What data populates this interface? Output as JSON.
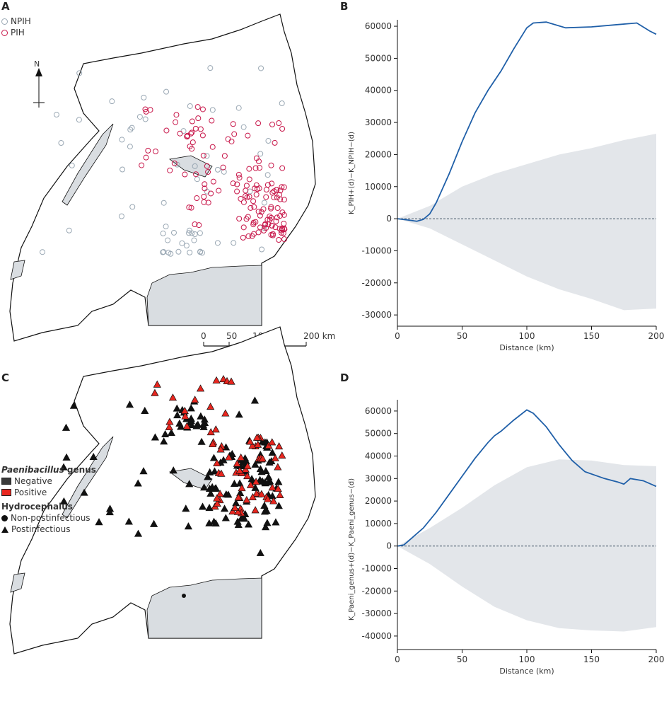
{
  "panels": {
    "a": "A",
    "b": "B",
    "c": "C",
    "d": "D"
  },
  "map_a": {
    "legend": [
      {
        "label": "NPIH",
        "color": "#9aa8b4"
      },
      {
        "label": "PIH",
        "color": "#c8174a"
      }
    ],
    "north": "N",
    "scale_ticks": [
      "0",
      "50",
      "100",
      "200 km"
    ]
  },
  "map_c": {
    "legend_title_italic": "Paenibacillus",
    "legend_title_rest": " genus",
    "genus_items": [
      {
        "label": "Negative",
        "color": "#3a3a3a"
      },
      {
        "label": "Positive",
        "color": "#e8261f"
      }
    ],
    "hydro_title": "Hydrocephalus",
    "hydro_items": [
      {
        "label": "Non-postinfectious",
        "shape": "circle"
      },
      {
        "label": "Postinfectious",
        "shape": "triangle"
      }
    ]
  },
  "colors": {
    "line": "#1f5fa8",
    "envelope": "#e3e6ea",
    "lake": "#d9dde1"
  },
  "chart_data": [
    {
      "type": "line",
      "panel": "B",
      "ylabel": "K_PIH+(d)−K_NPIH−(d)",
      "xlabel": "Distance (km)",
      "xlim": [
        0,
        200
      ],
      "ylim": [
        -33500,
        62000
      ],
      "xticks": [
        0,
        50,
        100,
        150,
        200
      ],
      "yticks": [
        -30000,
        -20000,
        -10000,
        0,
        10000,
        20000,
        30000,
        40000,
        50000,
        60000
      ],
      "series": [
        {
          "name": "observed",
          "x": [
            0,
            10,
            15,
            20,
            25,
            30,
            40,
            50,
            60,
            70,
            80,
            90,
            100,
            105,
            115,
            130,
            150,
            170,
            185,
            195,
            200
          ],
          "y": [
            0,
            -500,
            -800,
            -200,
            1500,
            5000,
            14000,
            24000,
            33000,
            40000,
            46000,
            53000,
            59500,
            61000,
            61300,
            59500,
            59800,
            60500,
            61000,
            58500,
            57500
          ]
        }
      ],
      "envelope": {
        "x": [
          0,
          25,
          50,
          75,
          100,
          125,
          150,
          175,
          200
        ],
        "upper": [
          0,
          4000,
          10000,
          14000,
          17000,
          20000,
          22000,
          24500,
          26500
        ],
        "lower": [
          0,
          -3000,
          -8000,
          -13000,
          -18000,
          -22000,
          -25000,
          -28500,
          -28000
        ]
      },
      "reference_line": 0
    },
    {
      "type": "line",
      "panel": "D",
      "ylabel": "K_Paeni_genus+(d)−K_Paeni_genus−(d)",
      "xlabel": "Distance (km)",
      "xlim": [
        0,
        200
      ],
      "ylim": [
        -46000,
        65000
      ],
      "xticks": [
        0,
        50,
        100,
        150,
        200
      ],
      "yticks": [
        -40000,
        -30000,
        -20000,
        -10000,
        0,
        10000,
        20000,
        30000,
        40000,
        50000,
        60000
      ],
      "series": [
        {
          "name": "observed",
          "x": [
            0,
            5,
            10,
            20,
            30,
            40,
            50,
            60,
            70,
            75,
            80,
            90,
            100,
            105,
            115,
            125,
            135,
            145,
            160,
            170,
            175,
            180,
            190,
            200
          ],
          "y": [
            0,
            500,
            3000,
            8000,
            15000,
            23000,
            31000,
            39000,
            46000,
            49000,
            51000,
            56000,
            60500,
            59000,
            53000,
            45000,
            38000,
            33000,
            30000,
            28500,
            27500,
            30000,
            29000,
            26500
          ]
        }
      ],
      "envelope": {
        "x": [
          0,
          25,
          50,
          75,
          100,
          125,
          150,
          175,
          200
        ],
        "upper": [
          0,
          8000,
          17000,
          27000,
          35000,
          38500,
          38000,
          36000,
          35500
        ],
        "lower": [
          0,
          -8000,
          -18000,
          -27000,
          -33000,
          -36500,
          -37500,
          -38000,
          -36000
        ]
      },
      "reference_line": 0
    }
  ]
}
